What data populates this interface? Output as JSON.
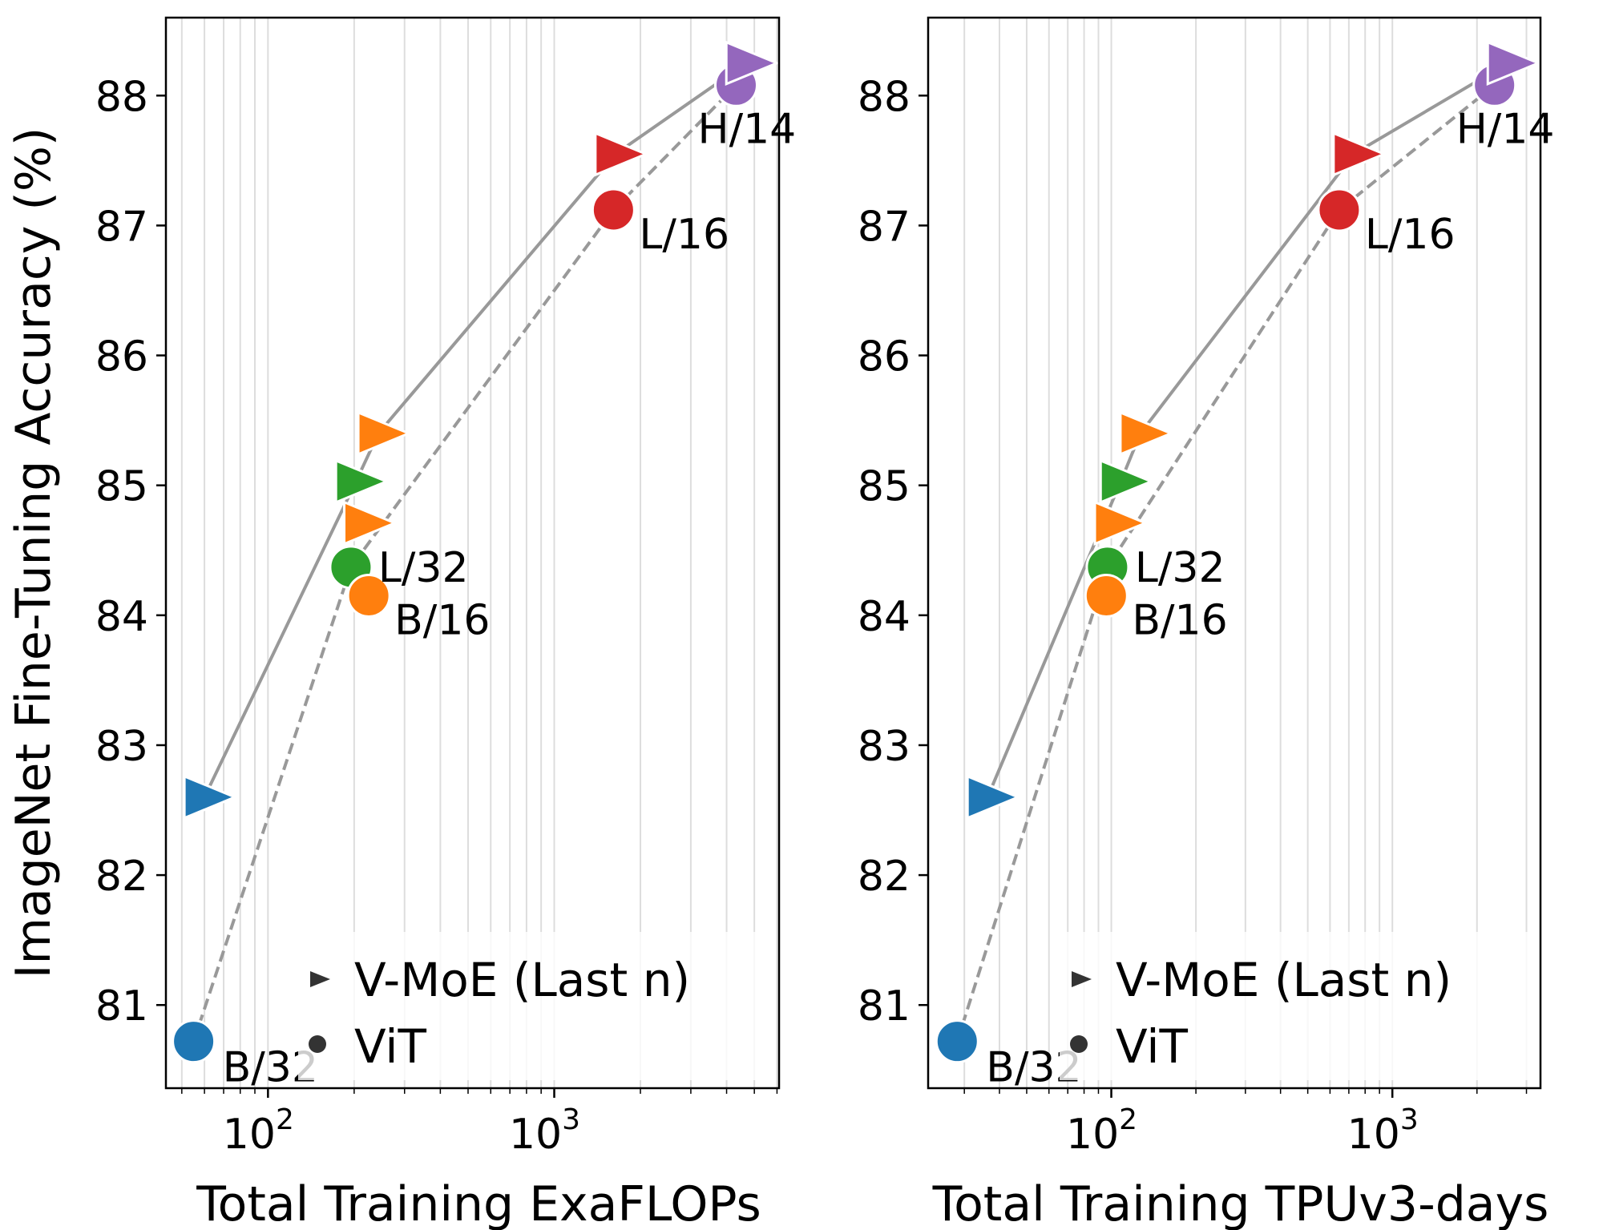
{
  "colors": {
    "B/32": "#1f77b4",
    "B/16": "#ff7f0e",
    "L/32": "#2ca02c",
    "L/16": "#d62728",
    "H/14": "#9467bd",
    "line": "#999999",
    "grid": "#dddddd",
    "legend_marker": "#333333"
  },
  "legend": {
    "placement": "bottom-right",
    "items": [
      {
        "label": "V-MoE (Last n)",
        "marker": "triangle-right"
      },
      {
        "label": "ViT",
        "marker": "circle"
      }
    ]
  },
  "chart_data": [
    {
      "type": "scatter",
      "xlabel": "Total Training ExaFLOPs",
      "ylabel": "ImageNet Fine-Tuning Accuracy (%)",
      "xscale": "log",
      "xlim": [
        44,
        6100
      ],
      "ylim": [
        80.36,
        88.6
      ],
      "xticks": [
        {
          "base": "10",
          "exp": "2",
          "value": 100
        },
        {
          "base": "10",
          "exp": "3",
          "value": 1000
        }
      ],
      "yticks": [
        "81",
        "82",
        "83",
        "84",
        "85",
        "86",
        "87",
        "88"
      ],
      "grid": "x-minor",
      "series": [
        {
          "name": "ViT",
          "marker": "circle",
          "line": "dashed",
          "points": [
            {
              "model": "B/32",
              "x": 55,
              "y": 80.72,
              "label": "B/32"
            },
            {
              "model": "L/32",
              "x": 195,
              "y": 84.37,
              "label": "L/32"
            },
            {
              "model": "B/16",
              "x": 225,
              "y": 84.15,
              "label": "B/16"
            },
            {
              "model": "L/16",
              "x": 1610,
              "y": 87.12,
              "label": "L/16"
            },
            {
              "model": "H/14",
              "x": 4320,
              "y": 88.08,
              "label": "H/14"
            }
          ]
        },
        {
          "name": "V-MoE (Last n)",
          "marker": "triangle-right",
          "line": "solid",
          "points": [
            {
              "model": "B/32",
              "x": 60,
              "y": 82.6
            },
            {
              "model": "L/32",
              "x": 203,
              "y": 85.03
            },
            {
              "model": "B/16",
              "x": 217,
              "y": 84.71
            },
            {
              "model": "B/16",
              "x": 243,
              "y": 85.4
            },
            {
              "model": "L/16",
              "x": 1636,
              "y": 87.55
            },
            {
              "model": "H/14",
              "x": 4690,
              "y": 88.25
            }
          ]
        }
      ]
    },
    {
      "type": "scatter",
      "xlabel": "Total Training TPUv3-days",
      "ylabel": "",
      "xscale": "log",
      "xlim": [
        22.3,
        3365
      ],
      "ylim": [
        80.36,
        88.6
      ],
      "xticks": [
        {
          "base": "10",
          "exp": "2",
          "value": 100
        },
        {
          "base": "10",
          "exp": "3",
          "value": 1000
        }
      ],
      "yticks": [
        "81",
        "82",
        "83",
        "84",
        "85",
        "86",
        "87",
        "88"
      ],
      "grid": "x-minor",
      "series": [
        {
          "name": "ViT",
          "marker": "circle",
          "line": "dashed",
          "points": [
            {
              "model": "B/32",
              "x": 28.3,
              "y": 80.72,
              "label": "B/32"
            },
            {
              "model": "L/32",
              "x": 97,
              "y": 84.37,
              "label": "L/32"
            },
            {
              "model": "B/16",
              "x": 96,
              "y": 84.15,
              "label": "B/16"
            },
            {
              "model": "L/16",
              "x": 647,
              "y": 87.12,
              "label": "L/16"
            },
            {
              "model": "H/14",
              "x": 2310,
              "y": 88.08,
              "label": "H/14"
            }
          ]
        },
        {
          "name": "V-MoE (Last n)",
          "marker": "triangle-right",
          "line": "solid",
          "points": [
            {
              "model": "B/32",
              "x": 36.3,
              "y": 82.6
            },
            {
              "model": "L/32",
              "x": 108,
              "y": 85.03
            },
            {
              "model": "B/16",
              "x": 103,
              "y": 84.71
            },
            {
              "model": "B/16",
              "x": 127,
              "y": 85.4
            },
            {
              "model": "L/16",
              "x": 728,
              "y": 87.55
            },
            {
              "model": "H/14",
              "x": 2575,
              "y": 88.25
            }
          ]
        }
      ]
    }
  ]
}
